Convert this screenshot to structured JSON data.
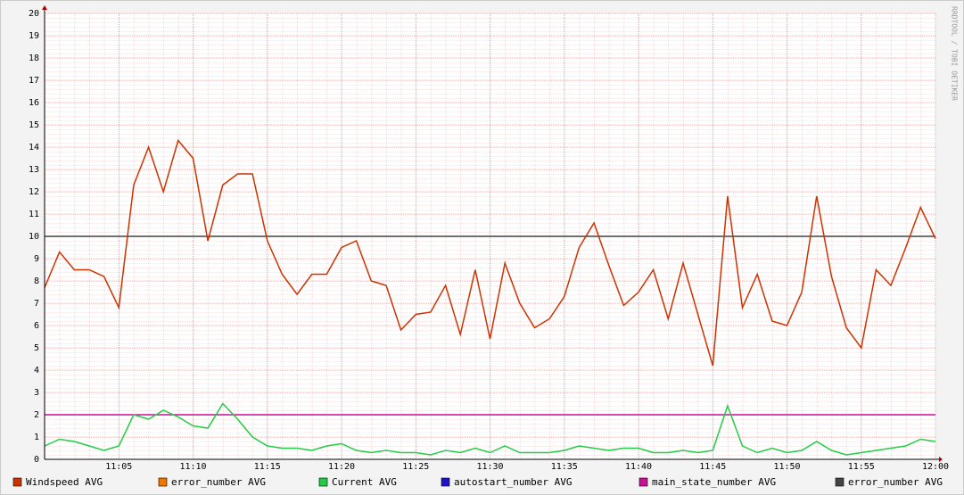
{
  "chart_data": {
    "type": "line",
    "watermark": "RRDTOOL / TOBI OETIKER",
    "x": [
      "11:00",
      "11:01",
      "11:02",
      "11:03",
      "11:04",
      "11:05",
      "11:06",
      "11:07",
      "11:08",
      "11:09",
      "11:10",
      "11:11",
      "11:12",
      "11:13",
      "11:14",
      "11:15",
      "11:16",
      "11:17",
      "11:18",
      "11:19",
      "11:20",
      "11:21",
      "11:22",
      "11:23",
      "11:24",
      "11:25",
      "11:26",
      "11:27",
      "11:28",
      "11:29",
      "11:30",
      "11:31",
      "11:32",
      "11:33",
      "11:34",
      "11:35",
      "11:36",
      "11:37",
      "11:38",
      "11:39",
      "11:40",
      "11:41",
      "11:42",
      "11:43",
      "11:44",
      "11:45",
      "11:46",
      "11:47",
      "11:48",
      "11:49",
      "11:50",
      "11:51",
      "11:52",
      "11:53",
      "11:54",
      "11:55",
      "11:56",
      "11:57",
      "11:58",
      "11:59",
      "12:00"
    ],
    "xlim": [
      "11:00",
      "12:00"
    ],
    "xticks": [
      "11:05",
      "11:10",
      "11:15",
      "11:20",
      "11:25",
      "11:30",
      "11:35",
      "11:40",
      "11:45",
      "11:50",
      "11:55",
      "12:00"
    ],
    "ylim": [
      0,
      20
    ],
    "yticks": [
      0,
      1,
      2,
      3,
      4,
      5,
      6,
      7,
      8,
      9,
      10,
      11,
      12,
      13,
      14,
      15,
      16,
      17,
      18,
      19,
      20
    ],
    "grid": true,
    "series": [
      {
        "name": "Windspeed AVG",
        "color": "#cc3300",
        "values": [
          7.7,
          9.3,
          8.5,
          8.5,
          8.2,
          6.8,
          12.3,
          14,
          12,
          14.3,
          13.5,
          9.8,
          12.3,
          12.8,
          12.8,
          9.8,
          8.3,
          7.4,
          8.3,
          8.3,
          9.5,
          9.8,
          8,
          7.8,
          5.8,
          6.5,
          6.6,
          7.8,
          5.6,
          8.5,
          5.4,
          8.8,
          7,
          5.9,
          6.3,
          7.3,
          9.5,
          10.6,
          8.7,
          6.9,
          7.5,
          8.5,
          6.3,
          8.8,
          6.5,
          4.2,
          11.8,
          6.8,
          8.3,
          6.2,
          6,
          7.5,
          11.8,
          8.2,
          5.9,
          5,
          8.5,
          7.8,
          9.5,
          11.3,
          9.9
        ]
      },
      {
        "name": "error_number AVG",
        "color": "#ee7700",
        "values": [
          null,
          null,
          null,
          null,
          null,
          null,
          null,
          null,
          null,
          null,
          null,
          null,
          null,
          null,
          null,
          null,
          null,
          null,
          null,
          null,
          null,
          null,
          null,
          null,
          null,
          null,
          null,
          null,
          null,
          null,
          null,
          null,
          null,
          null,
          null,
          null,
          null,
          null,
          null,
          null,
          null,
          null,
          null,
          null,
          null,
          null,
          null,
          null,
          null,
          null,
          null,
          null,
          null,
          null,
          null,
          null,
          null,
          null,
          null,
          null,
          null
        ]
      },
      {
        "name": "Current AVG",
        "color": "#22cc44",
        "values": [
          0.6,
          0.9,
          0.8,
          0.6,
          0.4,
          0.6,
          2,
          1.8,
          2.2,
          1.9,
          1.5,
          1.4,
          2.5,
          1.8,
          1,
          0.6,
          0.5,
          0.5,
          0.4,
          0.6,
          0.7,
          0.4,
          0.3,
          0.4,
          0.3,
          0.3,
          0.2,
          0.4,
          0.3,
          0.5,
          0.3,
          0.6,
          0.3,
          0.3,
          0.3,
          0.4,
          0.6,
          0.5,
          0.4,
          0.5,
          0.5,
          0.3,
          0.3,
          0.4,
          0.3,
          0.4,
          2.4,
          0.6,
          0.3,
          0.5,
          0.3,
          0.4,
          0.8,
          0.4,
          0.2,
          0.3,
          0.4,
          0.5,
          0.6,
          0.9,
          0.8
        ]
      },
      {
        "name": "autostart_number AVG",
        "color": "#2211cc",
        "values": [
          null,
          null,
          null,
          null,
          null,
          null,
          null,
          null,
          null,
          null,
          null,
          null,
          null,
          null,
          null,
          null,
          null,
          null,
          null,
          null,
          null,
          null,
          null,
          null,
          null,
          null,
          null,
          null,
          null,
          null,
          null,
          null,
          null,
          null,
          null,
          null,
          null,
          null,
          null,
          null,
          null,
          null,
          null,
          null,
          null,
          null,
          null,
          null,
          null,
          null,
          null,
          null,
          null,
          null,
          null,
          null,
          null,
          null,
          null,
          null,
          null
        ]
      },
      {
        "name": "main_state_number AVG",
        "color": "#cc1199",
        "values": [
          2,
          2,
          2,
          2,
          2,
          2,
          2,
          2,
          2,
          2,
          2,
          2,
          2,
          2,
          2,
          2,
          2,
          2,
          2,
          2,
          2,
          2,
          2,
          2,
          2,
          2,
          2,
          2,
          2,
          2,
          2,
          2,
          2,
          2,
          2,
          2,
          2,
          2,
          2,
          2,
          2,
          2,
          2,
          2,
          2,
          2,
          2,
          2,
          2,
          2,
          2,
          2,
          2,
          2,
          2,
          2,
          2,
          2,
          2,
          2,
          2
        ]
      },
      {
        "name": "error_number AVG",
        "color": "#444444",
        "values": [
          10,
          10,
          10,
          10,
          10,
          10,
          10,
          10,
          10,
          10,
          10,
          10,
          10,
          10,
          10,
          10,
          10,
          10,
          10,
          10,
          10,
          10,
          10,
          10,
          10,
          10,
          10,
          10,
          10,
          10,
          10,
          10,
          10,
          10,
          10,
          10,
          10,
          10,
          10,
          10,
          10,
          10,
          10,
          10,
          10,
          10,
          10,
          10,
          10,
          10,
          10,
          10,
          10,
          10,
          10,
          10,
          10,
          10,
          10,
          10,
          10
        ]
      }
    ]
  }
}
